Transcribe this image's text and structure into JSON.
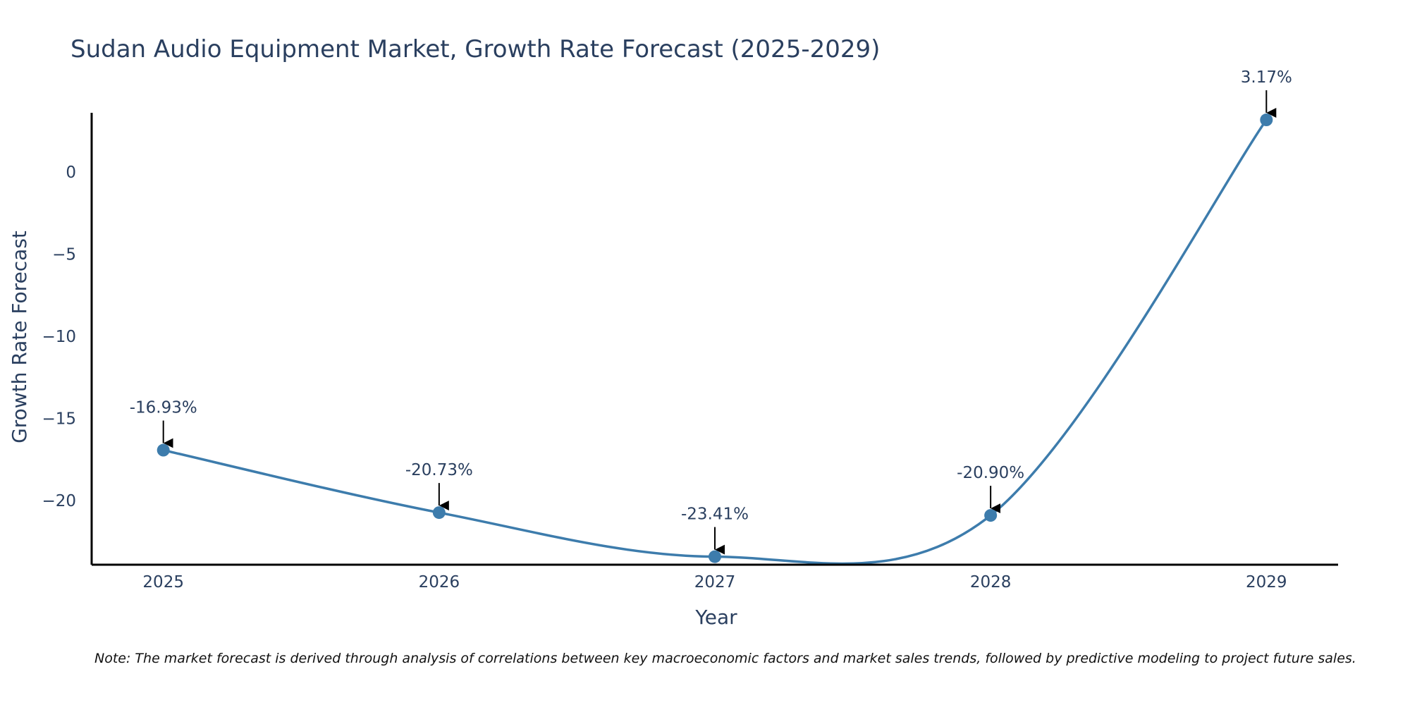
{
  "chart_data": {
    "type": "line",
    "title": "Sudan Audio Equipment Market, Growth Rate Forecast (2025-2029)",
    "xlabel": "Year",
    "ylabel": "Growth Rate Forecast",
    "categories": [
      "2025",
      "2026",
      "2027",
      "2028",
      "2029"
    ],
    "series": [
      {
        "name": "Growth Rate Forecast",
        "values": [
          -16.93,
          -20.73,
          -23.41,
          -20.9,
          3.17
        ],
        "labels": [
          "-16.93%",
          "-20.73%",
          "-23.41%",
          "-20.90%",
          "3.17%"
        ],
        "color": "#3d7cac",
        "line_shape": "spline"
      }
    ],
    "yticks": [
      0,
      -5,
      -10,
      -15,
      -20
    ],
    "ytick_labels": [
      "0",
      "−5",
      "−10",
      "−15",
      "−20"
    ],
    "ylim": [
      -23.9,
      3.6
    ],
    "xlim": [
      -0.26,
      4.26
    ],
    "grid": false,
    "note": "Note: The market forecast is derived through analysis of correlations between key macroeconomic factors and market sales trends, followed by predictive modeling to project future sales."
  }
}
